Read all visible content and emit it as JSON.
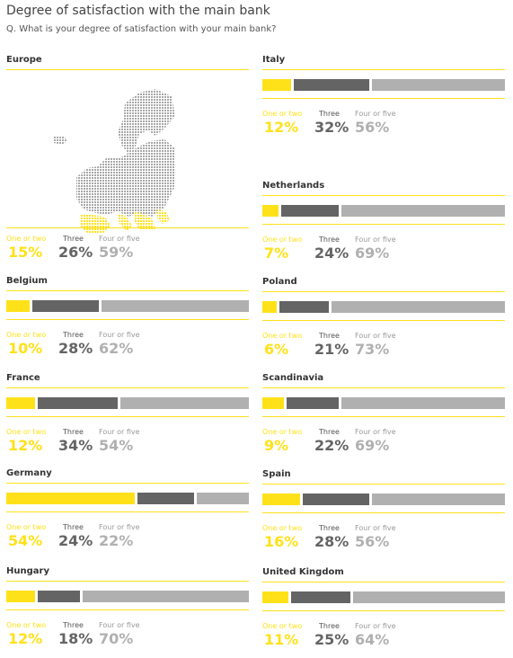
{
  "title": "Degree of satisfaction with the main bank",
  "subtitle": "Q. What is your degree of satisfaction with your main bank?",
  "colors": {
    "one_or_two": "#FFE11A",
    "three": "#646464",
    "four_or_five": "#B0B0B0",
    "rule": "#FFE11A"
  },
  "category_labels": [
    "One or two",
    "Three",
    "Four or five"
  ],
  "chart_data": {
    "type": "bar",
    "stacked": true,
    "orientation": "horizontal",
    "unit": "%",
    "series_names": [
      "One or two",
      "Three",
      "Four or five"
    ],
    "panels": [
      {
        "region": "Europe",
        "values": [
          15,
          26,
          59
        ],
        "labels": [
          "15%",
          "26%",
          "59%"
        ]
      },
      {
        "region": "Belgium",
        "values": [
          10,
          28,
          62
        ],
        "labels": [
          "10%",
          "28%",
          "62%"
        ]
      },
      {
        "region": "France",
        "values": [
          12,
          34,
          54
        ],
        "labels": [
          "12%",
          "34%",
          "54%"
        ]
      },
      {
        "region": "Germany",
        "values": [
          54,
          24,
          22
        ],
        "labels": [
          "54%",
          "24%",
          "22%"
        ]
      },
      {
        "region": "Hungary",
        "values": [
          12,
          18,
          70
        ],
        "labels": [
          "12%",
          "18%",
          "70%"
        ]
      },
      {
        "region": "Italy",
        "values": [
          12,
          32,
          56
        ],
        "labels": [
          "12%",
          "32%",
          "56%"
        ]
      },
      {
        "region": "Netherlands",
        "values": [
          7,
          24,
          69
        ],
        "labels": [
          "7%",
          "24%",
          "69%"
        ]
      },
      {
        "region": "Poland",
        "values": [
          6,
          21,
          73
        ],
        "labels": [
          "6%",
          "21%",
          "73%"
        ]
      },
      {
        "region": "Scandinavia",
        "values": [
          9,
          22,
          69
        ],
        "labels": [
          "9%",
          "22%",
          "69%"
        ]
      },
      {
        "region": "Spain",
        "values": [
          16,
          28,
          56
        ],
        "labels": [
          "16%",
          "28%",
          "56%"
        ]
      },
      {
        "region": "United Kingdom",
        "values": [
          11,
          25,
          64
        ],
        "labels": [
          "11%",
          "25%",
          "64%"
        ]
      }
    ]
  }
}
